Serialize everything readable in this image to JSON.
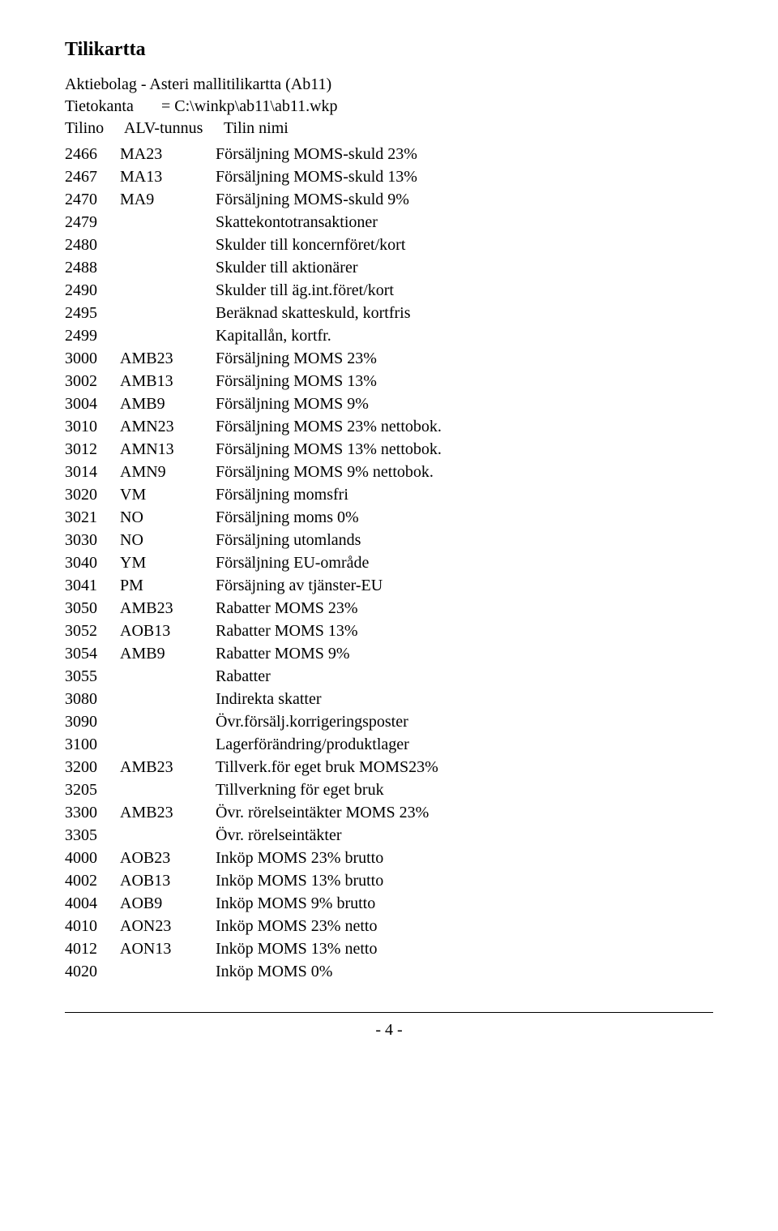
{
  "title": "Tilikartta",
  "subtitle": "Aktiebolag - Asteri mallitilikartta (Ab11)",
  "db": {
    "label": "Tietokanta",
    "value": "= C:\\winkp\\ab11\\ab11.wkp"
  },
  "columns": {
    "c1": "Tilino",
    "c2": "ALV-tunnus",
    "c3": "Tilin nimi"
  },
  "rows": [
    {
      "n": "2466",
      "alv": "MA23",
      "nimi": "Försäljning MOMS-skuld 23%"
    },
    {
      "n": "2467",
      "alv": "MA13",
      "nimi": "Försäljning MOMS-skuld 13%"
    },
    {
      "n": "2470",
      "alv": "MA9",
      "nimi": "Försäljning MOMS-skuld 9%"
    },
    {
      "n": "2479",
      "alv": "",
      "nimi": "Skattekontotransaktioner"
    },
    {
      "n": "2480",
      "alv": "",
      "nimi": "Skulder till koncernföret/kort"
    },
    {
      "n": "2488",
      "alv": "",
      "nimi": "Skulder till aktionärer"
    },
    {
      "n": "2490",
      "alv": "",
      "nimi": "Skulder till äg.int.föret/kort"
    },
    {
      "n": "2495",
      "alv": "",
      "nimi": "Beräknad skatteskuld, kortfris"
    },
    {
      "n": "2499",
      "alv": "",
      "nimi": "Kapitallån, kortfr."
    },
    {
      "n": "3000",
      "alv": "AMB23",
      "nimi": "Försäljning MOMS 23%"
    },
    {
      "n": "3002",
      "alv": "AMB13",
      "nimi": "Försäljning MOMS 13%"
    },
    {
      "n": "3004",
      "alv": "AMB9",
      "nimi": "Försäljning MOMS 9%"
    },
    {
      "n": "3010",
      "alv": "AMN23",
      "nimi": "Försäljning MOMS 23% nettobok."
    },
    {
      "n": "3012",
      "alv": "AMN13",
      "nimi": "Försäljning MOMS 13% nettobok."
    },
    {
      "n": "3014",
      "alv": "AMN9",
      "nimi": "Försäljning MOMS 9% nettobok."
    },
    {
      "n": "3020",
      "alv": "VM",
      "nimi": "Försäljning momsfri"
    },
    {
      "n": "3021",
      "alv": "NO",
      "nimi": "Försäljning moms 0%"
    },
    {
      "n": "3030",
      "alv": "NO",
      "nimi": "Försäljning utomlands"
    },
    {
      "n": "3040",
      "alv": "YM",
      "nimi": "Försäljning EU-område"
    },
    {
      "n": "3041",
      "alv": "PM",
      "nimi": "Försäjning av tjänster-EU"
    },
    {
      "n": "3050",
      "alv": "AMB23",
      "nimi": "Rabatter MOMS 23%"
    },
    {
      "n": "3052",
      "alv": "AOB13",
      "nimi": "Rabatter MOMS 13%"
    },
    {
      "n": "3054",
      "alv": "AMB9",
      "nimi": "Rabatter MOMS 9%"
    },
    {
      "n": "3055",
      "alv": "",
      "nimi": "Rabatter"
    },
    {
      "n": "3080",
      "alv": "",
      "nimi": "Indirekta skatter"
    },
    {
      "n": "3090",
      "alv": "",
      "nimi": "Övr.försälj.korrigeringsposter"
    },
    {
      "n": "3100",
      "alv": "",
      "nimi": "Lagerförändring/produktlager"
    },
    {
      "n": "3200",
      "alv": "AMB23",
      "nimi": "Tillverk.för eget bruk MOMS23%"
    },
    {
      "n": "3205",
      "alv": "",
      "nimi": "Tillverkning för eget bruk"
    },
    {
      "n": "3300",
      "alv": "AMB23",
      "nimi": "Övr. rörelseintäkter MOMS 23%"
    },
    {
      "n": "3305",
      "alv": "",
      "nimi": "Övr. rörelseintäkter"
    },
    {
      "n": "4000",
      "alv": "AOB23",
      "nimi": "Inköp MOMS 23% brutto"
    },
    {
      "n": "4002",
      "alv": "AOB13",
      "nimi": "Inköp MOMS 13% brutto"
    },
    {
      "n": "4004",
      "alv": "AOB9",
      "nimi": "Inköp MOMS 9% brutto"
    },
    {
      "n": "4010",
      "alv": "AON23",
      "nimi": "Inköp MOMS 23% netto"
    },
    {
      "n": "4012",
      "alv": "AON13",
      "nimi": "Inköp MOMS 13% netto"
    },
    {
      "n": "4020",
      "alv": "",
      "nimi": "Inköp MOMS 0%"
    }
  ],
  "page": "- 4 -"
}
